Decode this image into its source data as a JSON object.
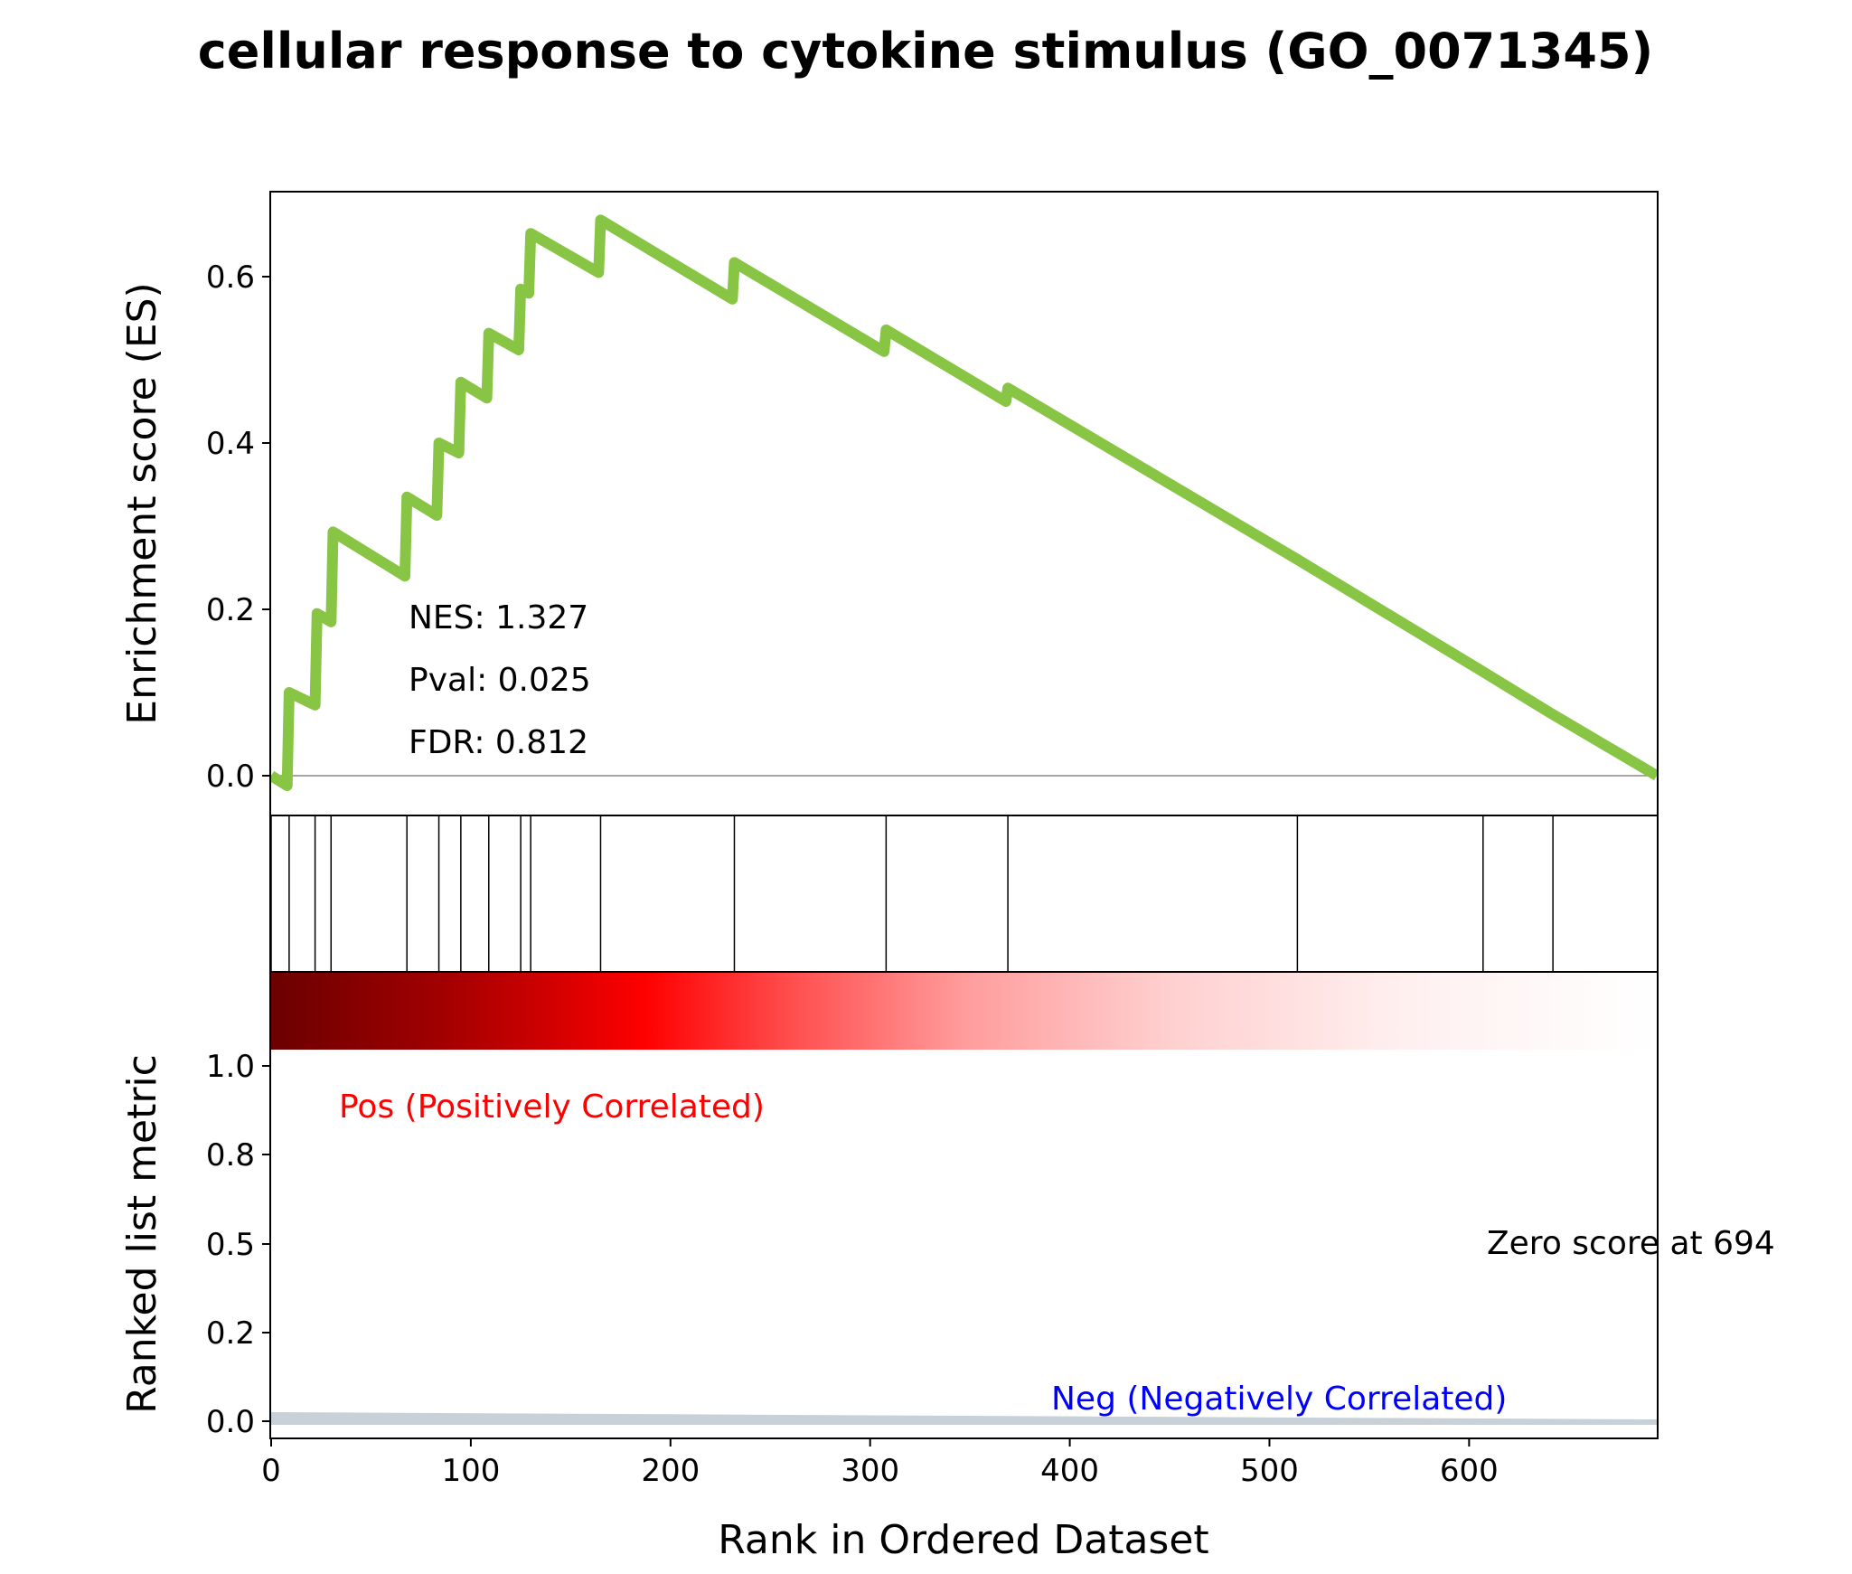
{
  "chart_data": {
    "type": "line",
    "title": "cellular response to cytokine stimulus (GO_0071345)",
    "es_panel": {
      "ylabel": "Enrichment score (ES)",
      "yticks": [
        "0.0",
        "0.2",
        "0.4",
        "0.6"
      ],
      "ylim": [
        -0.05,
        0.7
      ],
      "xlim": [
        0,
        694
      ],
      "line_color": "#88c544",
      "zero_line": true,
      "annotations": [
        "NES: 1.327",
        "Pval: 0.025",
        "FDR: 0.812"
      ],
      "x": [
        0,
        8,
        9,
        22,
        23,
        30,
        31,
        67,
        68,
        83,
        84,
        94,
        95,
        108,
        109,
        124,
        125,
        129,
        130,
        164,
        165,
        231,
        232,
        307,
        308,
        368,
        369,
        514,
        607,
        641,
        694
      ],
      "y": [
        0.0,
        -0.012,
        0.1,
        0.085,
        0.195,
        0.185,
        0.293,
        0.24,
        0.335,
        0.313,
        0.4,
        0.388,
        0.473,
        0.454,
        0.532,
        0.512,
        0.585,
        0.58,
        0.652,
        0.605,
        0.668,
        0.573,
        0.617,
        0.51,
        0.536,
        0.45,
        0.466,
        0.26,
        0.125,
        0.075,
        0.0
      ]
    },
    "hits": [
      0,
      9,
      22,
      30,
      68,
      84,
      95,
      109,
      125,
      130,
      165,
      232,
      308,
      369,
      514,
      607,
      642
    ],
    "rank_panel": {
      "ylabel": "Ranked list metric",
      "xlabel": "Rank in Ordered Dataset",
      "yticks": [
        "0.0",
        "0.2",
        "0.5",
        "0.8",
        "1.0"
      ],
      "xticks": [
        "0",
        "100",
        "200",
        "300",
        "400",
        "500",
        "600"
      ],
      "xtick_values": [
        0,
        100,
        200,
        300,
        400,
        500,
        600
      ],
      "xlim": [
        0,
        694
      ],
      "pos_label": "Pos (Positively Correlated)",
      "neg_label": "Neg (Negatively Correlated)",
      "zero_label": "Zero score at 694",
      "pos_color": "#ff0000",
      "neg_color": "#0000ff",
      "metric_fill_color": "#c8d0d8",
      "gradient_colors": [
        "#6b0000",
        "#cc0000",
        "#ff0000",
        "#ff5555",
        "#ffb0b0",
        "#ffe8e8",
        "#ffffff"
      ]
    }
  }
}
